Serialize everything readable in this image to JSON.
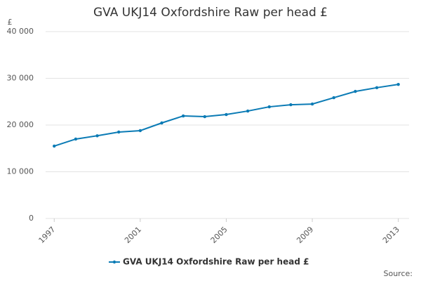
{
  "chart_data": {
    "type": "line",
    "title": "GVA UKJ14 Oxfordshire Raw per head £",
    "y_label": "£",
    "source": "Source:",
    "x": [
      1997,
      1998,
      1999,
      2000,
      2001,
      2002,
      2003,
      2004,
      2005,
      2006,
      2007,
      2008,
      2009,
      2010,
      2011,
      2012,
      2013
    ],
    "series": [
      {
        "name": "GVA UKJ14 Oxfordshire Raw per head £",
        "color": "#0b7bb5",
        "values": [
          15500,
          17000,
          17700,
          18500,
          18800,
          20450,
          21950,
          21800,
          22250,
          23000,
          23900,
          24350,
          24500,
          25850,
          27200,
          28000,
          28700
        ]
      }
    ],
    "xlim": [
      1996.6,
      2013.5
    ],
    "xticks": [
      1997,
      2001,
      2005,
      2009,
      2013
    ],
    "ylim": [
      0,
      40000
    ],
    "yticks": [
      0,
      {
        "value": 10000,
        "label": "10 000"
      },
      {
        "value": 20000,
        "label": "20 000"
      },
      {
        "value": 30000,
        "label": "30 000"
      },
      {
        "value": 40000,
        "label": "40 000"
      }
    ],
    "grid": true
  }
}
